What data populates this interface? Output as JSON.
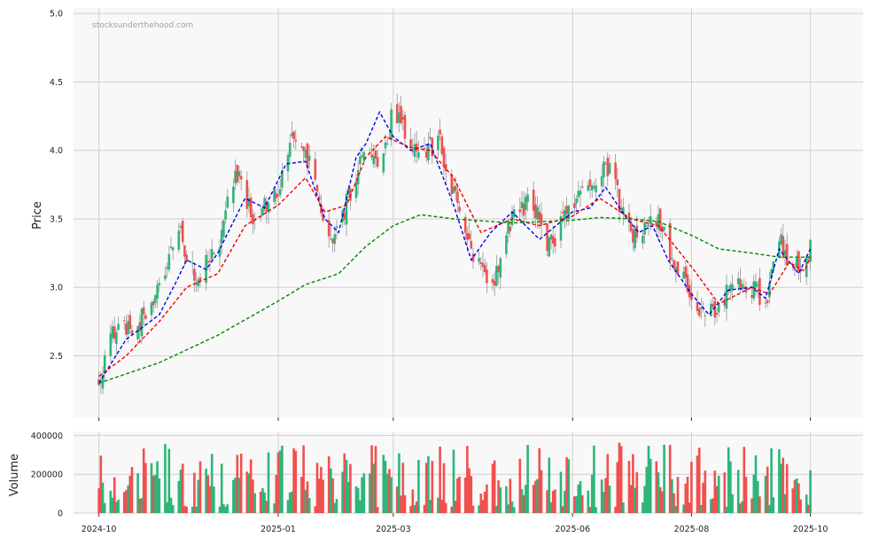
{
  "watermark": "stocksunderthehood.com",
  "chart_data": [
    {
      "type": "candlestick",
      "ylabel": "Price",
      "ylim": [
        2.05,
        5.04
      ],
      "yticks": [
        2.5,
        3.0,
        3.5,
        4.0,
        4.5,
        5.0
      ],
      "ytick_labels": [
        "2.5",
        "3.0",
        "3.5",
        "4.0",
        "4.5",
        "5.0"
      ],
      "xlim": [
        "2024-09-18",
        "2025-10-28"
      ],
      "xticks": [
        "2024-10-01",
        "2025-01-01",
        "2025-03-01",
        "2025-06-01",
        "2025-08-01",
        "2025-10-01"
      ],
      "xtick_labels": [
        "2024-10",
        "2025-01",
        "2025-03",
        "2025-06",
        "2025-08",
        "2025-10"
      ],
      "grid": true,
      "up_color": "#2db57a",
      "down_color": "#f0504f",
      "close_anchors": [
        [
          "2024-10-01",
          2.3
        ],
        [
          "2024-10-10",
          2.75
        ],
        [
          "2024-10-20",
          2.7
        ],
        [
          "2024-11-01",
          3.0
        ],
        [
          "2024-11-10",
          3.45
        ],
        [
          "2024-11-20",
          3.05
        ],
        [
          "2024-12-01",
          3.3
        ],
        [
          "2024-12-10",
          3.85
        ],
        [
          "2024-12-20",
          3.5
        ],
        [
          "2025-01-01",
          3.7
        ],
        [
          "2025-01-08",
          4.15
        ],
        [
          "2025-01-18",
          3.9
        ],
        [
          "2025-01-25",
          3.35
        ],
        [
          "2025-02-01",
          3.4
        ],
        [
          "2025-02-08",
          3.75
        ],
        [
          "2025-02-15",
          4.0
        ],
        [
          "2025-02-22",
          3.85
        ],
        [
          "2025-03-01",
          4.3
        ],
        [
          "2025-03-08",
          4.1
        ],
        [
          "2025-03-16",
          4.0
        ],
        [
          "2025-03-25",
          4.05
        ],
        [
          "2025-04-03",
          3.6
        ],
        [
          "2025-04-12",
          3.2
        ],
        [
          "2025-04-20",
          3.0
        ],
        [
          "2025-05-01",
          3.5
        ],
        [
          "2025-05-10",
          3.65
        ],
        [
          "2025-05-20",
          3.3
        ],
        [
          "2025-06-01",
          3.6
        ],
        [
          "2025-06-10",
          3.7
        ],
        [
          "2025-06-20",
          3.9
        ],
        [
          "2025-06-28",
          3.45
        ],
        [
          "2025-07-05",
          3.35
        ],
        [
          "2025-07-15",
          3.5
        ],
        [
          "2025-07-25",
          3.1
        ],
        [
          "2025-08-01",
          2.95
        ],
        [
          "2025-08-08",
          2.75
        ],
        [
          "2025-08-15",
          2.9
        ],
        [
          "2025-08-25",
          3.05
        ],
        [
          "2025-09-01",
          3.0
        ],
        [
          "2025-09-08",
          2.9
        ],
        [
          "2025-09-15",
          3.35
        ],
        [
          "2025-09-22",
          3.1
        ],
        [
          "2025-09-28",
          3.2
        ],
        [
          "2025-10-01",
          3.3
        ]
      ],
      "series": [
        {
          "color": "#0000ee",
          "style": "dashed",
          "points": [
            [
              "2024-10-01",
              2.3
            ],
            [
              "2024-10-15",
              2.62
            ],
            [
              "2024-11-01",
              2.8
            ],
            [
              "2024-11-10",
              3.05
            ],
            [
              "2024-11-15",
              3.2
            ],
            [
              "2024-11-25",
              3.13
            ],
            [
              "2024-12-01",
              3.25
            ],
            [
              "2024-12-15",
              3.65
            ],
            [
              "2024-12-25",
              3.58
            ],
            [
              "2025-01-05",
              3.9
            ],
            [
              "2025-01-15",
              3.92
            ],
            [
              "2025-01-25",
              3.5
            ],
            [
              "2025-02-01",
              3.4
            ],
            [
              "2025-02-10",
              3.95
            ],
            [
              "2025-02-15",
              4.05
            ],
            [
              "2025-02-22",
              4.28
            ],
            [
              "2025-03-01",
              4.1
            ],
            [
              "2025-03-10",
              4.0
            ],
            [
              "2025-03-20",
              4.05
            ],
            [
              "2025-04-01",
              3.6
            ],
            [
              "2025-04-10",
              3.2
            ],
            [
              "2025-04-20",
              3.4
            ],
            [
              "2025-05-01",
              3.55
            ],
            [
              "2025-05-15",
              3.35
            ],
            [
              "2025-06-01",
              3.55
            ],
            [
              "2025-06-10",
              3.58
            ],
            [
              "2025-06-18",
              3.73
            ],
            [
              "2025-06-28",
              3.52
            ],
            [
              "2025-07-05",
              3.4
            ],
            [
              "2025-07-12",
              3.45
            ],
            [
              "2025-07-20",
              3.2
            ],
            [
              "2025-08-01",
              2.95
            ],
            [
              "2025-08-10",
              2.8
            ],
            [
              "2025-08-20",
              2.98
            ],
            [
              "2025-09-01",
              3.0
            ],
            [
              "2025-09-08",
              2.92
            ],
            [
              "2025-09-15",
              3.28
            ],
            [
              "2025-09-25",
              3.1
            ],
            [
              "2025-10-01",
              3.28
            ]
          ]
        },
        {
          "color": "#ee0000",
          "style": "dashed",
          "points": [
            [
              "2024-10-01",
              2.35
            ],
            [
              "2024-10-15",
              2.5
            ],
            [
              "2024-11-01",
              2.75
            ],
            [
              "2024-11-15",
              3.0
            ],
            [
              "2024-12-01",
              3.1
            ],
            [
              "2024-12-15",
              3.45
            ],
            [
              "2025-01-01",
              3.6
            ],
            [
              "2025-01-15",
              3.8
            ],
            [
              "2025-01-25",
              3.55
            ],
            [
              "2025-02-05",
              3.6
            ],
            [
              "2025-02-15",
              3.95
            ],
            [
              "2025-02-25",
              4.1
            ],
            [
              "2025-03-10",
              4.02
            ],
            [
              "2025-03-20",
              4.0
            ],
            [
              "2025-04-01",
              3.8
            ],
            [
              "2025-04-15",
              3.4
            ],
            [
              "2025-05-01",
              3.5
            ],
            [
              "2025-05-15",
              3.45
            ],
            [
              "2025-06-01",
              3.52
            ],
            [
              "2025-06-15",
              3.65
            ],
            [
              "2025-07-01",
              3.5
            ],
            [
              "2025-07-15",
              3.45
            ],
            [
              "2025-08-01",
              3.15
            ],
            [
              "2025-08-15",
              2.88
            ],
            [
              "2025-09-01",
              3.0
            ],
            [
              "2025-09-10",
              2.95
            ],
            [
              "2025-09-20",
              3.18
            ],
            [
              "2025-09-28",
              3.12
            ],
            [
              "2025-10-01",
              3.22
            ]
          ]
        },
        {
          "color": "#008800",
          "style": "dashed",
          "points": [
            [
              "2024-10-01",
              2.3
            ],
            [
              "2024-11-01",
              2.45
            ],
            [
              "2024-12-01",
              2.65
            ],
            [
              "2025-01-01",
              2.9
            ],
            [
              "2025-01-15",
              3.02
            ],
            [
              "2025-02-01",
              3.1
            ],
            [
              "2025-02-15",
              3.3
            ],
            [
              "2025-03-01",
              3.45
            ],
            [
              "2025-03-15",
              3.53
            ],
            [
              "2025-04-01",
              3.5
            ],
            [
              "2025-05-01",
              3.47
            ],
            [
              "2025-06-01",
              3.49
            ],
            [
              "2025-06-15",
              3.51
            ],
            [
              "2025-07-01",
              3.5
            ],
            [
              "2025-07-15",
              3.48
            ],
            [
              "2025-08-01",
              3.38
            ],
            [
              "2025-08-15",
              3.28
            ],
            [
              "2025-09-01",
              3.25
            ],
            [
              "2025-09-15",
              3.22
            ],
            [
              "2025-10-01",
              3.22
            ]
          ]
        }
      ]
    },
    {
      "type": "bar",
      "ylabel": "Volume",
      "ylim": [
        0,
        420000
      ],
      "yticks": [
        0,
        200000,
        400000
      ],
      "ytick_labels": [
        "0",
        "200000",
        "400000"
      ],
      "xlim": [
        "2024-09-18",
        "2025-10-28"
      ],
      "xticks": [
        "2024-10-01",
        "2025-01-01",
        "2025-03-01",
        "2025-06-01",
        "2025-08-01",
        "2025-10-01"
      ],
      "xtick_labels": [
        "2024-10",
        "2025-01",
        "2025-03",
        "2025-06",
        "2025-08",
        "2025-10"
      ],
      "grid": true,
      "up_color": "#2db57a",
      "down_color": "#f0504f",
      "volume_range": [
        30000,
        370000
      ]
    }
  ]
}
